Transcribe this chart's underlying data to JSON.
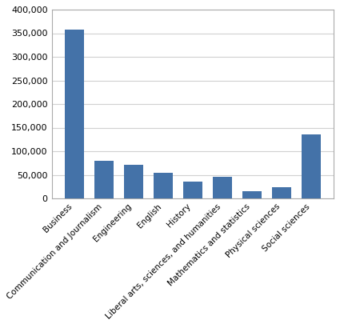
{
  "categories": [
    "Business",
    "Communication and Journalism",
    "Engineering",
    "English",
    "History",
    "Liberal arts, sciences, and humanities",
    "Mathematics and statistics",
    "Physical sciences",
    "Social sciences"
  ],
  "values": [
    358000,
    80000,
    72000,
    54000,
    36000,
    46000,
    16000,
    23000,
    136000
  ],
  "bar_color": "#4472a8",
  "ylim": [
    0,
    400000
  ],
  "yticks": [
    0,
    50000,
    100000,
    150000,
    200000,
    250000,
    300000,
    350000,
    400000
  ],
  "ytick_labels": [
    "0",
    "50,000",
    "100,000",
    "150,000",
    "200,000",
    "250,000",
    "300,000",
    "350,000",
    "400,000"
  ],
  "background_color": "#ffffff",
  "plot_bg_color": "#ffffff",
  "grid_color": "#d0d0d0",
  "bar_width": 0.65,
  "border_color": "#aaaaaa",
  "tick_label_fontsize": 7.5,
  "ytick_label_fontsize": 8
}
